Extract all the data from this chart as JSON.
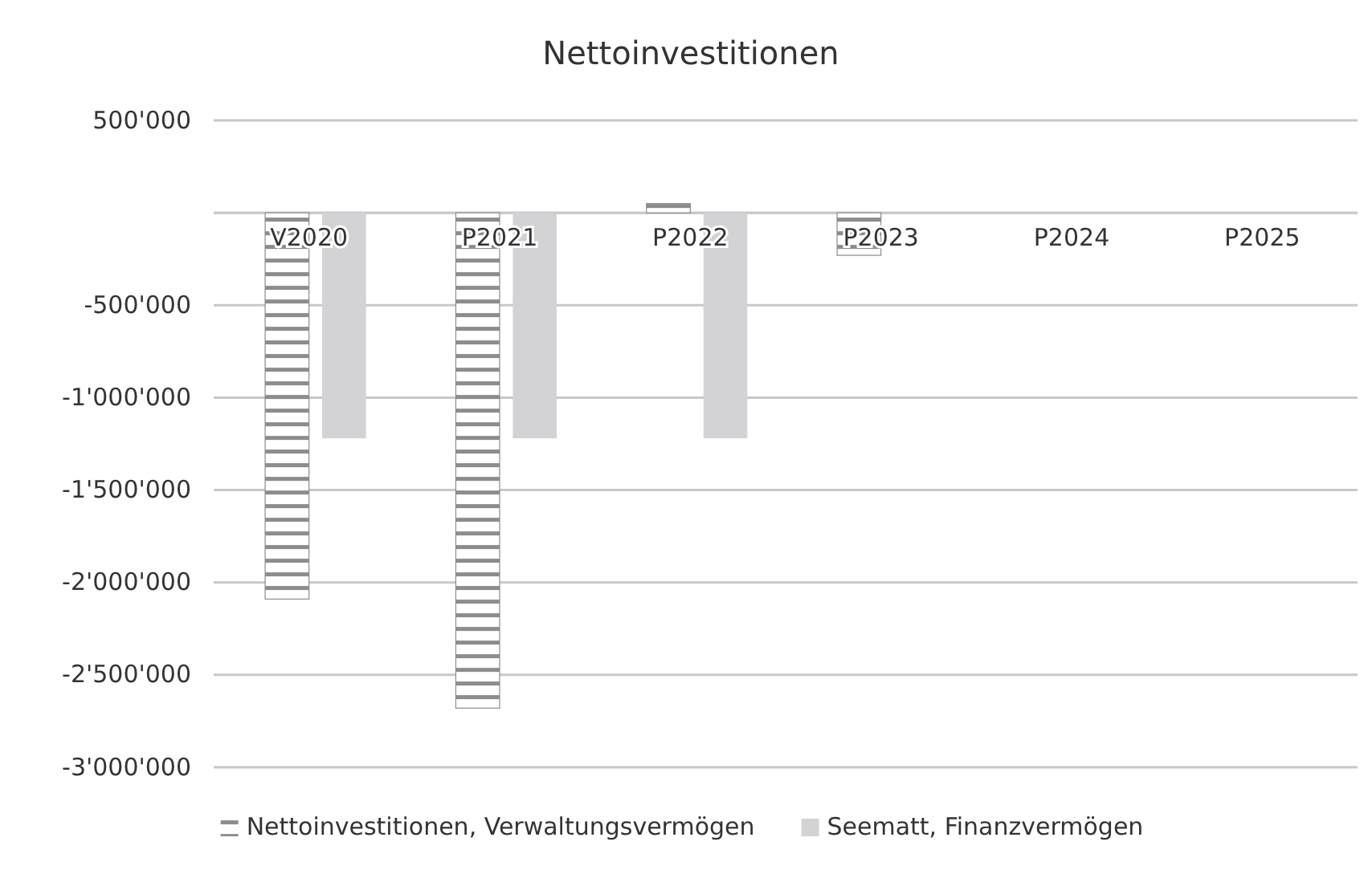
{
  "chart_data": {
    "type": "bar",
    "title": "Nettoinvestitionen",
    "categories": [
      "V2020",
      "P2021",
      "P2022",
      "P2023",
      "P2024",
      "P2025"
    ],
    "series": [
      {
        "name": "Nettoinvestitionen, Verwaltungsvermögen",
        "color": "#8c8c8c",
        "values": [
          -2090000,
          -2680000,
          50000,
          -230000,
          null,
          null
        ]
      },
      {
        "name": "Seematt, Finanzvermögen",
        "color": "#d3d3d5",
        "values": [
          -1220000,
          -1220000,
          -1220000,
          null,
          null,
          null
        ]
      }
    ],
    "ylim": [
      -3000000,
      500000
    ],
    "yticks": [
      {
        "value": -3000000,
        "label": "-3'000'000"
      },
      {
        "value": -2500000,
        "label": "-2'500'000"
      },
      {
        "value": -2000000,
        "label": "-2'000'000"
      },
      {
        "value": -1500000,
        "label": "-1'500'000"
      },
      {
        "value": -1000000,
        "label": "-1'000'000"
      },
      {
        "value": -500000,
        "label": "-500'000"
      },
      {
        "value": 0,
        "label": null
      },
      {
        "value": 500000,
        "label": "500'000"
      }
    ],
    "grid": "y",
    "legend": "bottom"
  }
}
